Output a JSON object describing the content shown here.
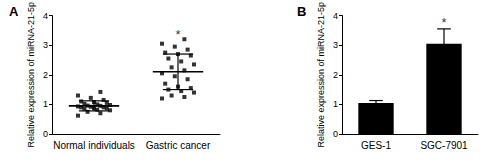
{
  "chart_data": [
    {
      "type": "scatter",
      "title": "A",
      "categories": [
        "Normal individuals",
        "Gastric cancer"
      ],
      "y_label": "Relative expression of miRNA-21-5p",
      "points": [
        [
          0.62,
          0.7,
          0.75,
          0.8,
          0.82,
          0.85,
          0.87,
          0.88,
          0.9,
          0.9,
          0.92,
          0.93,
          0.95,
          0.96,
          0.98,
          1.0,
          1.02,
          1.05,
          1.08,
          1.1,
          1.15,
          1.22,
          1.3,
          1.42
        ],
        [
          1.2,
          1.25,
          1.3,
          1.4,
          1.45,
          1.5,
          1.55,
          1.6,
          1.7,
          1.85,
          1.95,
          2.05,
          2.15,
          2.25,
          2.35,
          2.45,
          2.55,
          2.65,
          2.7,
          2.75,
          2.85,
          2.95,
          3.05,
          3.2
        ]
      ],
      "mean": [
        0.95,
        2.1
      ],
      "error": [
        0.17,
        0.6
      ],
      "color": "#000000",
      "marker": "square",
      "ylim": [
        0,
        4
      ],
      "yticks": [
        0,
        1,
        2,
        3,
        4
      ],
      "grid": false,
      "annotations": [
        {
          "text": "*",
          "category": "Gastric cancer",
          "y": 3.35
        }
      ]
    },
    {
      "type": "bar",
      "title": "B",
      "categories": [
        "GES-1",
        "SGC-7901"
      ],
      "y_label": "Relative expression of miRNA-21-5p",
      "values": [
        1.05,
        3.05
      ],
      "error": [
        0.08,
        0.5
      ],
      "color": "#000000",
      "ylim": [
        0,
        4
      ],
      "yticks": [
        0,
        1,
        2,
        3,
        4
      ],
      "grid": false,
      "annotations": [
        {
          "text": "*",
          "category": "SGC-7901",
          "y": 3.75
        }
      ]
    }
  ]
}
